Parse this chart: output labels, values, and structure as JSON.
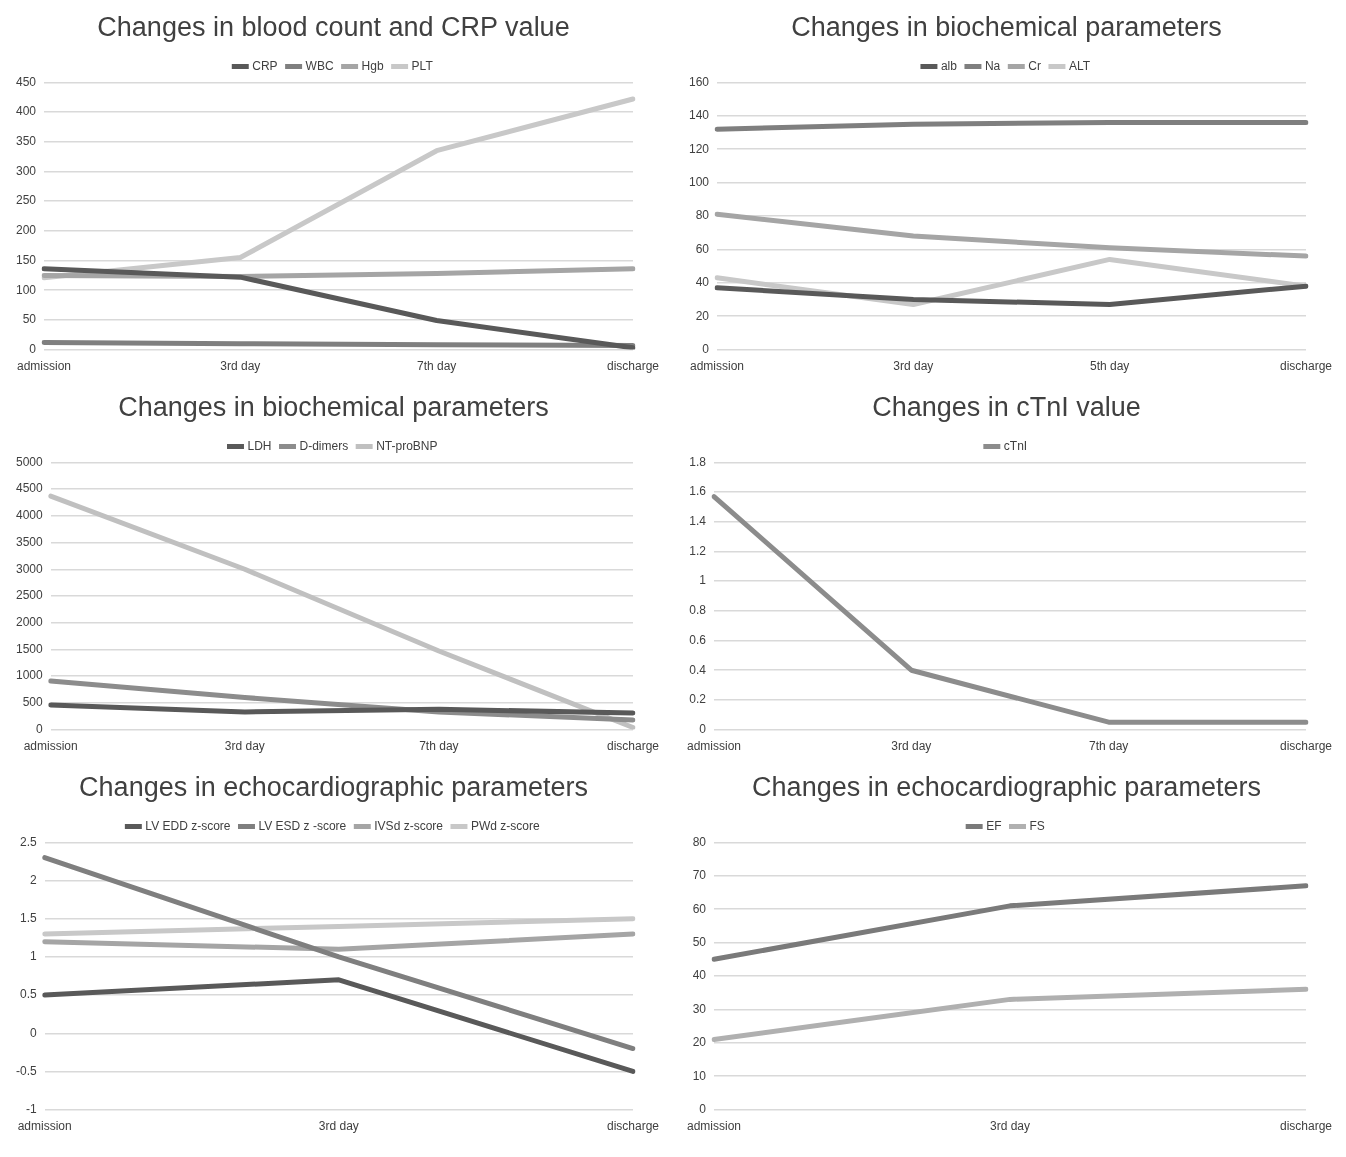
{
  "chart_data": [
    {
      "type": "line",
      "title": "Changes in blood count and CRP value",
      "categories": [
        "admission",
        "3rd day",
        "7th day",
        "discharge"
      ],
      "series": [
        {
          "name": "CRP",
          "color": "#595959",
          "values": [
            136,
            122,
            49,
            3
          ]
        },
        {
          "name": "WBC",
          "color": "#7f7f7f",
          "values": [
            12,
            10,
            8,
            7
          ]
        },
        {
          "name": "Hgb",
          "color": "#a5a5a5",
          "values": [
            125,
            123,
            128,
            136
          ]
        },
        {
          "name": "PLT",
          "color": "#c8c8c8",
          "values": [
            121,
            155,
            335,
            422
          ]
        }
      ],
      "ylim": [
        0,
        450
      ],
      "yticks": [
        0,
        50,
        100,
        150,
        200,
        250,
        300,
        350,
        400,
        450
      ],
      "grid": "y",
      "legend": "top",
      "marker": "none",
      "line_style": "solid"
    },
    {
      "type": "line",
      "title": "Changes in biochemical parameters",
      "categories": [
        "admission",
        "3rd day",
        "5th day",
        "discharge"
      ],
      "series": [
        {
          "name": "alb",
          "color": "#595959",
          "values": [
            37,
            30,
            27,
            38
          ]
        },
        {
          "name": "Na",
          "color": "#7f7f7f",
          "values": [
            132,
            135,
            136,
            136
          ]
        },
        {
          "name": "Cr",
          "color": "#a5a5a5",
          "values": [
            81,
            68,
            61,
            56
          ]
        },
        {
          "name": "ALT",
          "color": "#c8c8c8",
          "values": [
            43,
            27,
            54,
            38
          ]
        }
      ],
      "ylim": [
        0,
        160
      ],
      "yticks": [
        0,
        20,
        40,
        60,
        80,
        100,
        120,
        140,
        160
      ],
      "grid": "y",
      "legend": "top",
      "marker": "none",
      "line_style": "solid"
    },
    {
      "type": "line",
      "title": "Changes in biochemical parameters",
      "categories": [
        "admission",
        "3rd day",
        "7th day",
        "discharge"
      ],
      "series": [
        {
          "name": "LDH",
          "color": "#595959",
          "values": [
            460,
            330,
            380,
            310
          ]
        },
        {
          "name": "D-dimers",
          "color": "#8c8c8c",
          "values": [
            910,
            600,
            330,
            180
          ]
        },
        {
          "name": "NT-proBNP",
          "color": "#c0c0c0",
          "values": [
            4370,
            3000,
            1470,
            40
          ]
        }
      ],
      "ylim": [
        0,
        5000
      ],
      "yticks": [
        0,
        500,
        1000,
        1500,
        2000,
        2500,
        3000,
        3500,
        4000,
        4500,
        5000
      ],
      "grid": "y",
      "legend": "top",
      "marker": "none",
      "line_style": "solid"
    },
    {
      "type": "line",
      "title": "Changes in cTnI value",
      "categories": [
        "admission",
        "3rd day",
        "7th day",
        "discharge"
      ],
      "series": [
        {
          "name": "cTnI",
          "color": "#8c8c8c",
          "values": [
            1.57,
            0.4,
            0.05,
            0.05
          ]
        }
      ],
      "ylim": [
        0,
        1.8
      ],
      "yticks": [
        0,
        0.2,
        0.4,
        0.6,
        0.8,
        1,
        1.2,
        1.4,
        1.6,
        1.8
      ],
      "grid": "y",
      "legend": "top",
      "marker": "none",
      "line_style": "solid"
    },
    {
      "type": "line",
      "title": "Changes in echocardiographic parameters",
      "categories": [
        "admission",
        "3rd day",
        "discharge"
      ],
      "series": [
        {
          "name": "LV EDD z-score",
          "color": "#595959",
          "values": [
            0.5,
            0.7,
            -0.5
          ]
        },
        {
          "name": "LV ESD z -score",
          "color": "#7f7f7f",
          "values": [
            2.3,
            1.0,
            -0.2
          ]
        },
        {
          "name": "IVSd z-score",
          "color": "#a5a5a5",
          "values": [
            1.2,
            1.1,
            1.3
          ]
        },
        {
          "name": "PWd z-score",
          "color": "#c8c8c8",
          "values": [
            1.3,
            1.4,
            1.5
          ]
        }
      ],
      "ylim": [
        -1,
        2.5
      ],
      "yticks": [
        -1,
        -0.5,
        0,
        0.5,
        1,
        1.5,
        2,
        2.5
      ],
      "grid": "y",
      "legend": "top",
      "marker": "none",
      "line_style": "solid"
    },
    {
      "type": "line",
      "title": "Changes in echocardiographic parameters",
      "categories": [
        "admission",
        "3rd day",
        "discharge"
      ],
      "series": [
        {
          "name": "EF",
          "color": "#7a7a7a",
          "values": [
            45,
            61,
            67
          ]
        },
        {
          "name": "FS",
          "color": "#b0b0b0",
          "values": [
            21,
            33,
            36
          ]
        }
      ],
      "ylim": [
        0,
        80
      ],
      "yticks": [
        0,
        10,
        20,
        30,
        40,
        50,
        60,
        70,
        80
      ],
      "grid": "y",
      "legend": "top",
      "marker": "none",
      "line_style": "solid"
    }
  ]
}
